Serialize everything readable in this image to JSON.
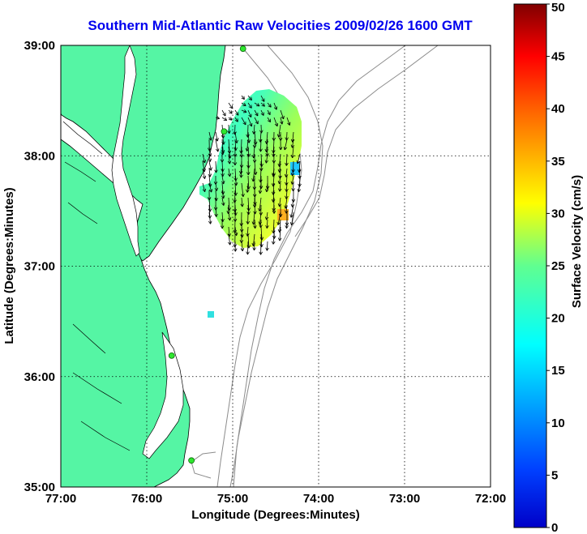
{
  "title": "Southern Mid-Atlantic Raw Velocities 2009/02/26 1600 GMT",
  "map": {
    "xlabel": "Longitude (Degrees:Minutes)",
    "ylabel": "Latitude (Degrees:Minutes)",
    "x_ticks": [
      "77:00",
      "76:00",
      "75:00",
      "74:00",
      "73:00",
      "72:00"
    ],
    "y_ticks": [
      "39:00",
      "38:00",
      "37:00",
      "36:00",
      "35:00"
    ],
    "lon_range": [
      -77,
      -72
    ],
    "lat_range": [
      35,
      39
    ],
    "grid": "dotted",
    "land_color": "#55f5a4",
    "water_color": "#ffffff",
    "bathymetry_color": "#8c8c8c",
    "station_color": "#2ee62e",
    "stations": [
      {
        "lon": -74.88,
        "lat": 38.97
      },
      {
        "lon": -75.1,
        "lat": 38.22
      },
      {
        "lon": -75.71,
        "lat": 36.19
      },
      {
        "lon": -75.48,
        "lat": 35.24
      }
    ]
  },
  "colorbar": {
    "label": "Surface Velocity (cm/s)",
    "min": 0,
    "max": 50,
    "ticks": [
      "0",
      "5",
      "10",
      "15",
      "20",
      "25",
      "30",
      "35",
      "40",
      "45",
      "50"
    ],
    "colormap": "jet"
  }
}
